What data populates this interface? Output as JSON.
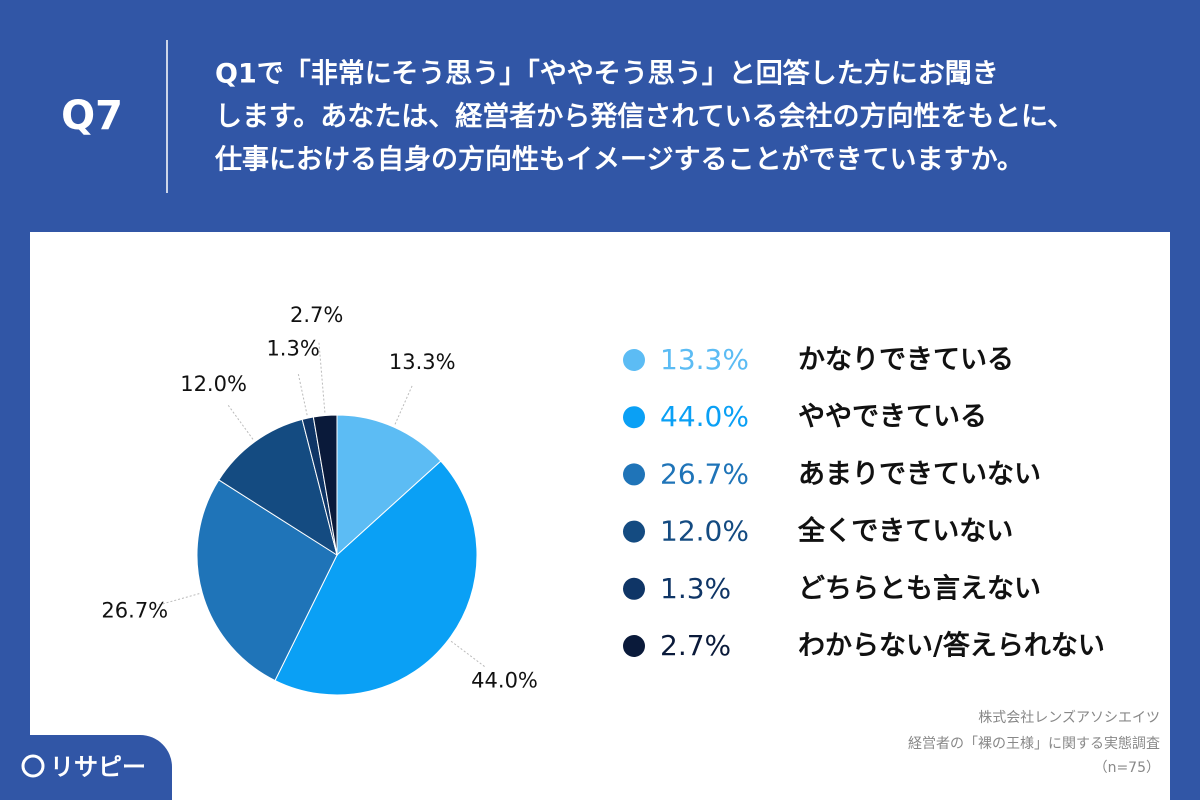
{
  "header": {
    "label": "Q7",
    "question": [
      "Q1で「非常にそう思う」「ややそう思う」と回答した方にお聞き",
      "します。あなたは、経営者から発信されている会社の方向性をもとに、",
      "仕事における自身の方向性もイメージすることができていますか。"
    ]
  },
  "chart_data": {
    "type": "pie",
    "categories": [
      "かなりできている",
      "ややできている",
      "あまりできていない",
      "全くできていない",
      "どちらとも言えない",
      "わからない/答えられない"
    ],
    "values": [
      13.3,
      44.0,
      26.7,
      12.0,
      1.3,
      2.7
    ],
    "value_labels": [
      "13.3%",
      "44.0%",
      "26.7%",
      "12.0%",
      "1.3%",
      "2.7%"
    ],
    "colors": [
      "#5cbcf4",
      "#0aa0f5",
      "#1f74b8",
      "#144b81",
      "#0f3566",
      "#0a1a3a"
    ]
  },
  "source": [
    "株式会社レンズアソシエイツ",
    "経営者の「裸の王様」に関する実態調査",
    "（n=75）"
  ],
  "logo": "リサピー"
}
